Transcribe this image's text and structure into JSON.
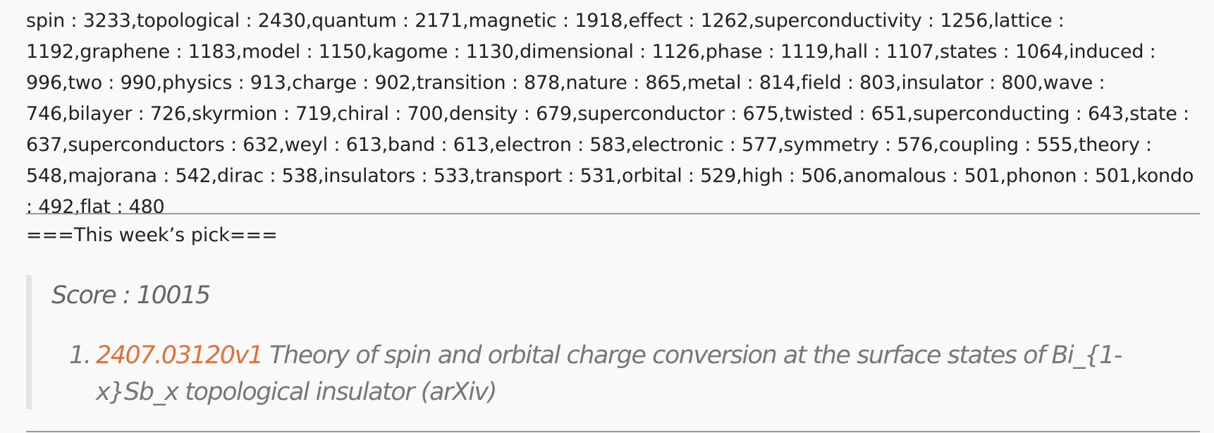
{
  "word_frequency_text": "spin : 3233,topological : 2430,quantum : 2171,magnetic : 1918,effect : 1262,superconductivity : 1256,lattice : 1192,graphene : 1183,model : 1150,kagome : 1130,dimensional : 1126,phase : 1119,hall : 1107,states : 1064,induced : 996,two : 990,physics : 913,charge : 902,transition : 878,nature : 865,metal : 814,field : 803,insulator : 800,wave : 746,bilayer : 726,skyrmion : 719,chiral : 700,density : 679,superconductor : 675,twisted : 651,superconducting : 643,state : 637,superconductors : 632,weyl : 613,band : 613,electron : 583,electronic : 577,symmetry : 576,coupling : 555,theory : 548,majorana : 542,dirac : 538,insulators : 533,transport : 531,orbital : 529,high : 506,anomalous : 501,phonon : 501,kondo : 492,flat : 480",
  "pick_heading": "===This week’s pick===",
  "score_text": "Score : 10015",
  "picks": [
    {
      "number": "1.",
      "arxiv_id": "2407.03120v1",
      "title": " Theory of spin and orbital charge conversion at the surface states of Bi_{1-x}Sb_x topological insulator (arXiv)"
    }
  ],
  "colors": {
    "link": "#e0723a",
    "quote_text": "#777777",
    "quote_bar": "#e3e3e3",
    "rule": "#999999"
  }
}
